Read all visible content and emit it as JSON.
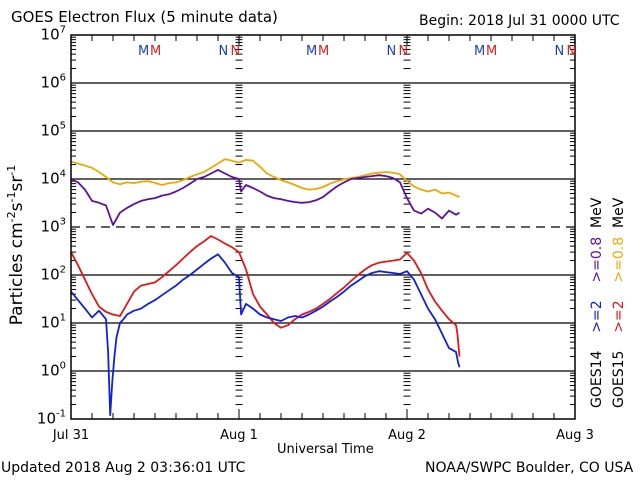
{
  "chart_data": {
    "type": "line",
    "title": "GOES Electron Flux (5 minute data)",
    "subtitle": "Begin: 2018 Jul 31 0000 UTC",
    "xlabel": "Universal Time",
    "ylabel": "Particles cm-2s-1sr-1",
    "ylabel_parts": {
      "base": "Particles cm",
      "e1": "-2",
      "s": "s",
      "e2": "-1",
      "sr": "sr",
      "e3": "-1"
    },
    "x_unit": "hours since 2018 Jul 31 0000 UTC",
    "xlim": [
      0,
      72
    ],
    "ylim": [
      0.1,
      10000000
    ],
    "yscale": "log",
    "x_ticks": [
      {
        "value": 0,
        "label": "Jul 31"
      },
      {
        "value": 24,
        "label": "Aug 1"
      },
      {
        "value": 48,
        "label": "Aug 2"
      },
      {
        "value": 72,
        "label": "Aug 3"
      }
    ],
    "y_ticks": [
      {
        "exp": 7,
        "base": "10",
        "sup": "7"
      },
      {
        "exp": 6,
        "base": "10",
        "sup": "6"
      },
      {
        "exp": 5,
        "base": "10",
        "sup": "5"
      },
      {
        "exp": 4,
        "base": "10",
        "sup": "4"
      },
      {
        "exp": 3,
        "base": "10",
        "sup": "3"
      },
      {
        "exp": 2,
        "base": "10",
        "sup": "2"
      },
      {
        "exp": 1,
        "base": "10",
        "sup": "1"
      },
      {
        "exp": 0,
        "base": "10",
        "sup": "0"
      },
      {
        "exp": -1,
        "base": "10",
        "sup": "-1"
      }
    ],
    "reference_line": {
      "value": 1000,
      "style": "dashed"
    },
    "grid": true,
    "midnight_markers": [
      {
        "hour": 11.0,
        "labels": [
          {
            "text": "M",
            "color": "#1f3fbf"
          },
          {
            "text": "M",
            "color": "#e02020"
          }
        ]
      },
      {
        "hour": 22.5,
        "labels": [
          {
            "text": "N",
            "color": "#1f3fbf"
          },
          {
            "text": "N",
            "color": "#e02020"
          }
        ]
      },
      {
        "hour": 35.0,
        "labels": [
          {
            "text": "M",
            "color": "#1f3fbf"
          },
          {
            "text": "M",
            "color": "#e02020"
          }
        ]
      },
      {
        "hour": 46.5,
        "labels": [
          {
            "text": "N",
            "color": "#1f3fbf"
          },
          {
            "text": "N",
            "color": "#e02020"
          }
        ]
      },
      {
        "hour": 59.0,
        "labels": [
          {
            "text": "M",
            "color": "#1f3fbf"
          },
          {
            "text": "M",
            "color": "#e02020"
          }
        ]
      },
      {
        "hour": 70.5,
        "labels": [
          {
            "text": "N",
            "color": "#1f3fbf"
          },
          {
            "text": "N",
            "color": "#e02020"
          }
        ]
      }
    ],
    "series": [
      {
        "name": "GOES15 >=0.8 MeV",
        "color": "#f0a800",
        "x": [
          0,
          1,
          2,
          3,
          4,
          5,
          6,
          7,
          8,
          9,
          10,
          11,
          12,
          13,
          14,
          15,
          16,
          17,
          18,
          19,
          20,
          21,
          22,
          23,
          24,
          25,
          26,
          27,
          28,
          29,
          30,
          31,
          32,
          33,
          34,
          35,
          36,
          37,
          38,
          39,
          40,
          41,
          42,
          43,
          44,
          45,
          46,
          47,
          48,
          49,
          50,
          51,
          52,
          53,
          54,
          55,
          55.5
        ],
        "values": [
          23000,
          21000,
          19000,
          17000,
          14000,
          11000,
          8500,
          7800,
          8500,
          8200,
          8800,
          9000,
          8300,
          7500,
          8200,
          8500,
          9500,
          11000,
          12500,
          14000,
          17000,
          21000,
          26000,
          24000,
          22000,
          25000,
          24000,
          18000,
          13000,
          11000,
          9500,
          8500,
          7500,
          6500,
          6000,
          6200,
          6800,
          8000,
          9000,
          9800,
          10500,
          11000,
          12000,
          13000,
          13500,
          14000,
          13500,
          12500,
          9000,
          7000,
          6000,
          5500,
          6000,
          5000,
          5200,
          4500,
          4200
        ]
      },
      {
        "name": "GOES14 >=0.8 MeV",
        "color": "#6010a0",
        "x": [
          0,
          1,
          2,
          3,
          4,
          5,
          6,
          7,
          8,
          9,
          10,
          11,
          12,
          13,
          14,
          15,
          16,
          17,
          18,
          19,
          20,
          21,
          22,
          23,
          24,
          24.3,
          25,
          26,
          27,
          28,
          29,
          30,
          31,
          32,
          33,
          34,
          35,
          36,
          37,
          38,
          39,
          40,
          41,
          42,
          43,
          44,
          45,
          46,
          47,
          48,
          49,
          50,
          51,
          52,
          53,
          54,
          55,
          55.5
        ],
        "values": [
          10000,
          8500,
          6000,
          3500,
          3200,
          2800,
          1100,
          2000,
          2500,
          3000,
          3500,
          3800,
          4000,
          4500,
          4800,
          5500,
          6500,
          8000,
          10000,
          11000,
          13000,
          15500,
          13000,
          11000,
          10000,
          5500,
          7500,
          6500,
          5500,
          4500,
          4000,
          3800,
          3500,
          3300,
          3200,
          3300,
          3600,
          4200,
          5500,
          7000,
          8500,
          10000,
          10500,
          11000,
          11500,
          12000,
          11500,
          10500,
          8500,
          4000,
          2200,
          1900,
          2400,
          2000,
          1500,
          2200,
          1800,
          2000
        ]
      },
      {
        "name": "GOES15 >=2 MeV",
        "color": "#e01818",
        "x": [
          0,
          1,
          2,
          3,
          4,
          5,
          6,
          7,
          8,
          9,
          10,
          11,
          12,
          13,
          14,
          15,
          16,
          17,
          18,
          19,
          20,
          21,
          22,
          23,
          24,
          25,
          26,
          27,
          28,
          29,
          30,
          31,
          32,
          33,
          34,
          35,
          36,
          37,
          38,
          39,
          40,
          41,
          42,
          43,
          44,
          45,
          46,
          47,
          48,
          49,
          50,
          51,
          52,
          53,
          54,
          55,
          55.2,
          55.5
        ],
        "values": [
          300,
          160,
          80,
          40,
          22,
          17,
          15,
          14,
          25,
          45,
          60,
          65,
          70,
          90,
          120,
          160,
          220,
          300,
          400,
          500,
          650,
          550,
          450,
          380,
          300,
          130,
          40,
          22,
          15,
          10,
          8,
          9,
          12,
          15,
          17,
          20,
          25,
          32,
          42,
          55,
          75,
          100,
          130,
          160,
          180,
          190,
          200,
          210,
          290,
          200,
          110,
          50,
          28,
          18,
          12,
          9,
          6,
          2
        ]
      },
      {
        "name": "GOES14 >=2 MeV",
        "color": "#1020e0",
        "x": [
          0,
          1,
          2,
          3,
          4,
          5,
          5.3,
          5.6,
          5.9,
          6.2,
          6.5,
          7,
          7.5,
          8,
          9,
          10,
          11,
          12,
          13,
          14,
          15,
          16,
          17,
          18,
          19,
          20,
          21,
          22,
          23,
          24,
          24.3,
          25,
          26,
          27,
          28,
          29,
          30,
          31,
          32,
          33,
          34,
          35,
          36,
          37,
          38,
          39,
          40,
          41,
          42,
          43,
          44,
          45,
          46,
          47,
          48,
          49,
          50,
          51,
          52,
          53,
          54,
          55,
          55.3,
          55.5
        ],
        "values": [
          45,
          30,
          20,
          13,
          18,
          12,
          2.5,
          0.12,
          0.6,
          2,
          5,
          10,
          12,
          15,
          18,
          20,
          25,
          30,
          38,
          48,
          60,
          80,
          100,
          130,
          170,
          220,
          270,
          180,
          110,
          90,
          15,
          25,
          20,
          15,
          13,
          12,
          11,
          13,
          14,
          13,
          15,
          18,
          22,
          28,
          35,
          45,
          60,
          75,
          95,
          110,
          120,
          115,
          110,
          105,
          120,
          80,
          40,
          20,
          12,
          6,
          3,
          2.5,
          1.5,
          1.2
        ]
      }
    ],
    "legend": [
      {
        "text": "GOES14",
        "color": "#000000"
      },
      {
        "text": ">=2",
        "color": "#1020e0"
      },
      {
        "text": ">=0.8",
        "color": "#6010a0"
      },
      {
        "text": "MeV",
        "color": "#000000"
      },
      {
        "text": "GOES15",
        "color": "#000000"
      },
      {
        "text": ">=2",
        "color": "#e01818"
      },
      {
        "text": ">=0.8",
        "color": "#f0a800"
      },
      {
        "text": "MeV",
        "color": "#000000"
      }
    ],
    "legend_placement": "right-vertical"
  },
  "footer": {
    "updated": "Updated 2018 Aug  2 03:36:01 UTC",
    "credit": "NOAA/SWPC Boulder, CO USA"
  }
}
